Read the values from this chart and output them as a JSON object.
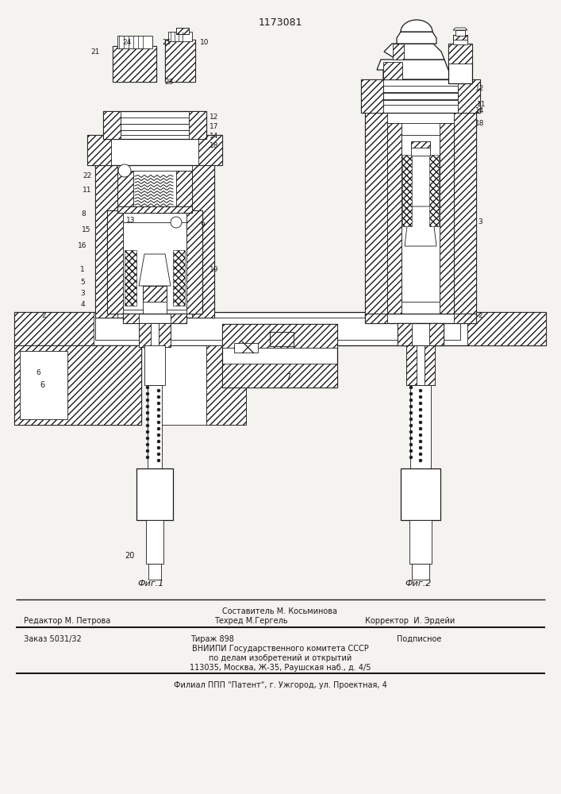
{
  "patent_number": "1173081",
  "bg_color": "#f5f3ef",
  "line_color": "#1a1a1a",
  "fig1_label": "Фиг.1",
  "fig2_label": "Фиг.2",
  "footer_composed": "Составитель М. Косьминова",
  "footer_editor": "Редактор М. Петрова",
  "footer_tech": "Техред М.Гергель",
  "footer_corrector": "Корректор  И. Эрдейи",
  "footer_order": "Заказ 5031/32",
  "footer_tirazh": "Тираж 898",
  "footer_podp": "Подписное",
  "footer_vnipi": "ВНИИПИ Государственного комитета СССР",
  "footer_dela": "по делам изобретений и открытий",
  "footer_addr": "113035, Москва, Ж-35, Раушская наб., д. 4/5",
  "footer_filial": "Филиал ППП \"Патент\", г. Ужгород, ул. Проектная, 4"
}
